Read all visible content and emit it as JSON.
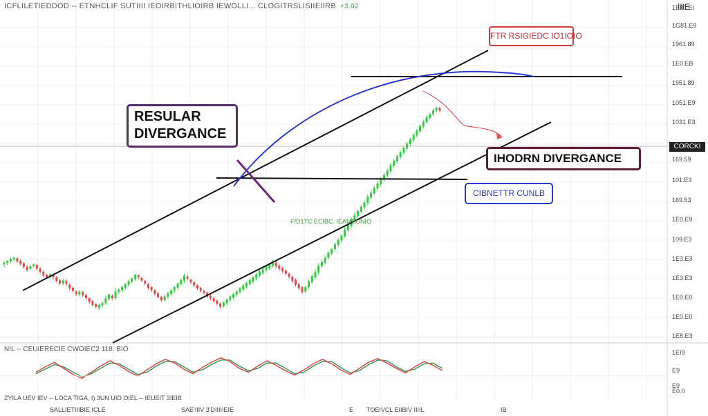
{
  "header": {
    "text": "ICFLILETIEDDOD -- ETNHCLIF SUTIIII IEOIRBITHLIOIRB IEWOLLI... CLOGITRSLISIIEIIRB",
    "status": "+3.02"
  },
  "corner_label": "IIIE",
  "price_axis": {
    "labels": [
      "1E83.EI",
      "1G81.E9",
      "1961.89",
      "1E0.EB",
      "1951.89",
      "1051.E9",
      "1031.E3",
      "169.59",
      "101.E3",
      "169.53",
      "1E0.E9",
      "109.E3",
      "1E3.E3",
      "1E3.E3",
      "1E0.E0",
      "1E0.E0",
      "1E8.E3"
    ],
    "current_badge": "CORCKI"
  },
  "osc_axis": {
    "labels": [
      "1EI9",
      "E9",
      "E9",
      "E0.0"
    ]
  },
  "osc_header": "NIL -- CEUIERECIE CWOIEC2 118. BIO",
  "time_axis": {
    "upper": "ZYILA UEV IEV -- LOCA  TIGA, I) 3UN   UID OIEL -- IEUEIT 3IEIB",
    "labels": [
      "SALLIETIIIBIE ICLE",
      "SAE'IIIV  3'DIIIIIEIE",
      "E",
      "TOEIVCL EIIBIV IIIIL",
      "IB"
    ]
  },
  "annotations": {
    "regular_divergence": "RESULAR DIVERGANCE",
    "top_label": "FTR RSIGIEDC IO1IOIO",
    "hidden_divergence": "IHODRN DIVERGANCE",
    "breakout_label": "CIBNETTR CUNLB",
    "green_note": "F/D1TC  ECIBC. IEAMBUNIO"
  },
  "colors": {
    "bull": "#2fcf3f",
    "bear": "#e04848",
    "channel": "#111111",
    "curve": "#2a3ad0",
    "osc_fast": "#d94a4a",
    "osc_slow": "#3a9a5a"
  },
  "chart_data": {
    "type": "candlestick",
    "candles": [
      [
        435,
        438,
        431,
        441
      ],
      [
        437,
        441,
        434,
        442
      ],
      [
        440,
        444,
        437,
        446
      ],
      [
        443,
        446,
        441,
        448
      ],
      [
        445,
        440,
        437,
        447
      ],
      [
        441,
        436,
        433,
        444
      ],
      [
        437,
        431,
        428,
        439
      ],
      [
        431,
        426,
        423,
        434
      ],
      [
        428,
        432,
        425,
        434
      ],
      [
        432,
        435,
        430,
        437
      ],
      [
        434,
        428,
        425,
        436
      ],
      [
        428,
        423,
        420,
        431
      ],
      [
        423,
        417,
        414,
        425
      ],
      [
        418,
        414,
        411,
        420
      ],
      [
        414,
        419,
        411,
        421
      ],
      [
        418,
        414,
        411,
        420
      ],
      [
        414,
        408,
        405,
        416
      ],
      [
        409,
        404,
        401,
        411
      ],
      [
        404,
        409,
        401,
        412
      ],
      [
        408,
        403,
        400,
        411
      ],
      [
        402,
        396,
        393,
        404
      ],
      [
        397,
        392,
        389,
        399
      ],
      [
        391,
        387,
        384,
        393
      ],
      [
        386,
        391,
        383,
        393
      ],
      [
        390,
        385,
        382,
        392
      ],
      [
        385,
        380,
        377,
        387
      ],
      [
        380,
        374,
        371,
        382
      ],
      [
        375,
        369,
        366,
        377
      ],
      [
        370,
        366,
        363,
        372
      ],
      [
        364,
        369,
        361,
        371
      ],
      [
        368,
        372,
        365,
        374
      ],
      [
        372,
        380,
        369,
        384
      ],
      [
        379,
        386,
        376,
        388
      ],
      [
        384,
        380,
        377,
        386
      ],
      [
        380,
        391,
        377,
        396
      ],
      [
        390,
        394,
        387,
        396
      ],
      [
        393,
        398,
        390,
        400
      ],
      [
        397,
        403,
        394,
        405
      ],
      [
        402,
        408,
        399,
        410
      ],
      [
        407,
        412,
        404,
        414
      ],
      [
        411,
        418,
        408,
        420
      ],
      [
        417,
        414,
        411,
        419
      ],
      [
        413,
        409,
        406,
        415
      ],
      [
        408,
        404,
        401,
        410
      ],
      [
        403,
        397,
        394,
        405
      ],
      [
        398,
        393,
        390,
        400
      ],
      [
        393,
        387,
        384,
        395
      ],
      [
        388,
        382,
        379,
        390
      ],
      [
        382,
        377,
        374,
        384
      ],
      [
        377,
        383,
        374,
        385
      ],
      [
        382,
        388,
        379,
        390
      ],
      [
        387,
        393,
        384,
        395
      ],
      [
        392,
        398,
        389,
        400
      ],
      [
        397,
        404,
        394,
        406
      ],
      [
        403,
        410,
        400,
        412
      ],
      [
        408,
        417,
        405,
        420
      ],
      [
        415,
        412,
        409,
        418
      ],
      [
        410,
        406,
        403,
        412
      ],
      [
        406,
        401,
        398,
        408
      ],
      [
        401,
        396,
        393,
        403
      ],
      [
        397,
        392,
        389,
        399
      ],
      [
        392,
        389,
        386,
        394
      ],
      [
        389,
        383,
        380,
        391
      ],
      [
        384,
        380,
        377,
        386
      ],
      [
        380,
        375,
        372,
        382
      ],
      [
        376,
        371,
        368,
        378
      ],
      [
        371,
        366,
        363,
        373
      ],
      [
        367,
        373,
        364,
        375
      ],
      [
        372,
        378,
        369,
        380
      ],
      [
        377,
        383,
        374,
        385
      ],
      [
        381,
        387,
        378,
        389
      ],
      [
        386,
        391,
        383,
        393
      ],
      [
        390,
        396,
        387,
        398
      ],
      [
        394,
        401,
        391,
        403
      ],
      [
        399,
        405,
        396,
        407
      ],
      [
        403,
        410,
        400,
        412
      ],
      [
        407,
        414,
        404,
        416
      ],
      [
        412,
        419,
        409,
        421
      ],
      [
        417,
        424,
        414,
        426
      ],
      [
        421,
        428,
        418,
        430
      ],
      [
        425,
        432,
        422,
        434
      ],
      [
        429,
        436,
        426,
        438
      ],
      [
        433,
        440,
        430,
        442
      ],
      [
        438,
        432,
        429,
        440
      ],
      [
        433,
        428,
        425,
        435
      ],
      [
        429,
        424,
        421,
        431
      ],
      [
        425,
        420,
        417,
        427
      ],
      [
        420,
        415,
        412,
        422
      ],
      [
        415,
        408,
        405,
        417
      ],
      [
        410,
        402,
        399,
        412
      ],
      [
        403,
        396,
        393,
        405
      ],
      [
        398,
        390,
        387,
        400
      ],
      [
        391,
        398,
        388,
        401
      ],
      [
        398,
        407,
        395,
        410
      ],
      [
        406,
        416,
        403,
        420
      ],
      [
        414,
        423,
        411,
        427
      ],
      [
        422,
        433,
        419,
        437
      ],
      [
        432,
        439,
        429,
        442
      ],
      [
        438,
        446,
        435,
        449
      ],
      [
        446,
        454,
        443,
        456
      ],
      [
        453,
        460,
        450,
        462
      ],
      [
        460,
        468,
        457,
        471
      ],
      [
        467,
        475,
        464,
        478
      ],
      [
        474,
        482,
        471,
        485
      ],
      [
        481,
        492,
        478,
        496
      ],
      [
        491,
        499,
        488,
        502
      ],
      [
        498,
        508,
        495,
        512
      ],
      [
        507,
        515,
        504,
        519
      ],
      [
        514,
        522,
        511,
        525
      ],
      [
        521,
        529,
        518,
        532
      ],
      [
        528,
        536,
        525,
        539
      ],
      [
        535,
        545,
        532,
        549
      ],
      [
        544,
        552,
        541,
        556
      ],
      [
        551,
        560,
        548,
        564
      ],
      [
        559,
        567,
        556,
        571
      ],
      [
        566,
        574,
        563,
        578
      ],
      [
        573,
        581,
        570,
        584
      ],
      [
        580,
        588,
        577,
        591
      ],
      [
        587,
        597,
        584,
        601
      ],
      [
        596,
        604,
        593,
        608
      ],
      [
        603,
        611,
        600,
        614
      ],
      [
        610,
        618,
        607,
        621
      ],
      [
        617,
        625,
        614,
        628
      ],
      [
        624,
        632,
        621,
        635
      ],
      [
        631,
        639,
        628,
        642
      ],
      [
        638,
        646,
        635,
        649
      ],
      [
        645,
        653,
        642,
        656
      ],
      [
        652,
        661,
        649,
        664
      ],
      [
        660,
        668,
        657,
        671
      ],
      [
        667,
        675,
        664,
        678
      ],
      [
        674,
        680,
        671,
        683
      ],
      [
        680,
        686,
        677,
        689
      ],
      [
        686,
        690,
        683,
        693
      ],
      [
        690,
        686,
        683,
        692
      ]
    ],
    "channel": {
      "upper": [
        [
          0,
          435
        ],
        [
          45,
          720
        ]
      ],
      "lower": [
        [
          0,
          360
        ],
        [
          45,
          645
        ]
      ]
    },
    "oscillator": {
      "fast": [
        55,
        62,
        68,
        60,
        52,
        47,
        55,
        63,
        70,
        64,
        56,
        50,
        58,
        66,
        72,
        67,
        59,
        53,
        61,
        68,
        74,
        69,
        60,
        55,
        63,
        70,
        64,
        57,
        51,
        58,
        66,
        72,
        66,
        58,
        52,
        60,
        68,
        73,
        67,
        60,
        54,
        62,
        69,
        64,
        57
      ],
      "slow": [
        53,
        59,
        65,
        62,
        55,
        49,
        53,
        60,
        67,
        66,
        59,
        52,
        55,
        63,
        69,
        69,
        62,
        55,
        58,
        65,
        71,
        71,
        63,
        57,
        60,
        67,
        67,
        60,
        53,
        55,
        63,
        69,
        69,
        61,
        54,
        57,
        65,
        71,
        70,
        62,
        56,
        59,
        66,
        67,
        60
      ]
    },
    "price_range": [
      1823,
      1960
    ],
    "osc_range": [
      20,
      80
    ]
  }
}
